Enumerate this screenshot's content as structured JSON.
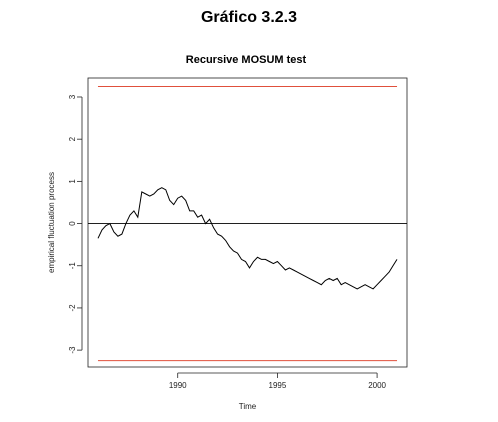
{
  "figure_heading": "Gráfico 3.2.3",
  "chart_data": {
    "type": "line",
    "title": "Recursive MOSUM test",
    "xlabel": "Time",
    "ylabel": "empirical fluctuation process",
    "xlim": [
      1985.5,
      2001.5
    ],
    "ylim": [
      -3.4,
      3.45
    ],
    "xticks": [
      1990,
      1995,
      2000
    ],
    "xtick_labels": [
      "1990",
      "1995",
      "2000"
    ],
    "yticks": [
      -3,
      -2,
      -1,
      0,
      1,
      2,
      3
    ],
    "ytick_labels": [
      "-3",
      "-2",
      "-1",
      "0",
      "1",
      "2",
      "3"
    ],
    "grid": false,
    "series": [
      {
        "color": "#000000",
        "x": [
          1986.0,
          1986.2,
          1986.4,
          1986.6,
          1986.8,
          1987.0,
          1987.2,
          1987.4,
          1987.6,
          1987.8,
          1988.0,
          1988.2,
          1988.4,
          1988.6,
          1988.8,
          1989.0,
          1989.2,
          1989.4,
          1989.6,
          1989.8,
          1990.0,
          1990.2,
          1990.4,
          1990.6,
          1990.8,
          1991.0,
          1991.2,
          1991.4,
          1991.6,
          1991.8,
          1992.0,
          1992.2,
          1992.4,
          1992.6,
          1992.8,
          1993.0,
          1993.2,
          1993.4,
          1993.6,
          1993.8,
          1994.0,
          1994.2,
          1994.4,
          1994.6,
          1994.8,
          1995.0,
          1995.2,
          1995.4,
          1995.6,
          1995.8,
          1996.0,
          1996.2,
          1996.4,
          1996.6,
          1996.8,
          1997.0,
          1997.2,
          1997.4,
          1997.6,
          1997.8,
          1998.0,
          1998.2,
          1998.4,
          1998.6,
          1998.8,
          1999.0,
          1999.2,
          1999.4,
          1999.6,
          1999.8,
          2000.0,
          2000.2,
          2000.4,
          2000.6,
          2000.8,
          2001.0
        ],
        "y": [
          -0.35,
          -0.15,
          -0.05,
          0.0,
          -0.2,
          -0.3,
          -0.25,
          0.0,
          0.2,
          0.3,
          0.15,
          0.75,
          0.7,
          0.65,
          0.7,
          0.8,
          0.85,
          0.8,
          0.55,
          0.45,
          0.6,
          0.65,
          0.55,
          0.3,
          0.3,
          0.15,
          0.2,
          0.0,
          0.1,
          -0.1,
          -0.25,
          -0.3,
          -0.4,
          -0.55,
          -0.65,
          -0.7,
          -0.85,
          -0.9,
          -1.05,
          -0.9,
          -0.8,
          -0.85,
          -0.85,
          -0.9,
          -0.95,
          -0.9,
          -1.0,
          -1.1,
          -1.05,
          -1.1,
          -1.15,
          -1.2,
          -1.25,
          -1.3,
          -1.35,
          -1.4,
          -1.45,
          -1.35,
          -1.3,
          -1.35,
          -1.3,
          -1.45,
          -1.4,
          -1.45,
          -1.5,
          -1.55,
          -1.5,
          -1.45,
          -1.5,
          -1.55,
          -1.45,
          -1.35,
          -1.25,
          -1.15,
          -1.0,
          -0.85
        ]
      }
    ],
    "boundaries": [
      {
        "y": 3.25,
        "color": "#e0503c"
      },
      {
        "y": -3.25,
        "color": "#e0503c"
      }
    ],
    "reference_line": {
      "y": 0,
      "color": "#000000"
    }
  }
}
